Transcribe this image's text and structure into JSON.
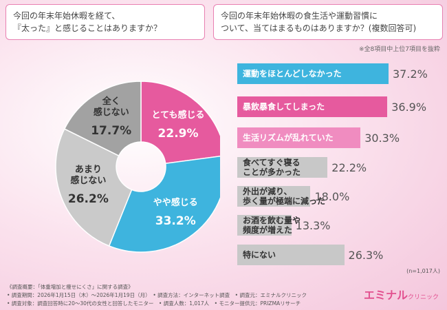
{
  "chart_data": [
    {
      "type": "donut",
      "title": "今回の年末年始休暇を経て、\n『太った』と感じることはありますか？",
      "categories": [
        "とても感じる",
        "やや感じる",
        "あまり\n感じない",
        "全く\n感じない"
      ],
      "values": [
        22.9,
        33.2,
        26.2,
        17.7
      ],
      "value_labels": [
        "22.9%",
        "33.2%",
        "26.2%",
        "17.7%"
      ],
      "colors": [
        "#e65a9e",
        "#3eb4de",
        "#cacaca",
        "#a2a2a2"
      ],
      "label_colors": [
        "#ffffff",
        "#ffffff",
        "#333333",
        "#333333"
      ]
    },
    {
      "type": "hbar",
      "title": "今回の年末年始休暇の食生活や運動習慣に\nついて、当てはまるものはありますか？(複数回答可)",
      "note": "※全8項目中上位7項目を抜粋",
      "categories": [
        "運動をほとんどしなかった",
        "暴飲暴食してしまった",
        "生活リズムが乱れていた",
        "食べてすぐ寝る\nことが多かった",
        "外出が減り、\n歩く量が極端に減った",
        "お酒を飲む量や\n頻度が増えた",
        "特にない"
      ],
      "values": [
        37.2,
        36.9,
        30.3,
        22.2,
        18.0,
        13.3,
        26.3
      ],
      "value_labels": [
        "37.2%",
        "36.9%",
        "30.3%",
        "22.2%",
        "18.0%",
        "13.3%",
        "26.3%"
      ],
      "colors": [
        "#3eb4de",
        "#e65a9e",
        "#f08cc0",
        "#c8c8c8",
        "#c8c8c8",
        "#c8c8c8",
        "#c8c8c8"
      ],
      "label_colors": [
        "#ffffff",
        "#ffffff",
        "#ffffff",
        "#333333",
        "#333333",
        "#333333",
        "#333333"
      ],
      "sample_size": "(n=1,017人)"
    }
  ],
  "footer": [
    "《調査概要：「体重増加と痩せにくさ」に関する調査》",
    "• 調査期間：2026年1月15日（木）〜2026年1月19日（月）　• 調査方法：インターネット調査　• 調査元：エミナルクリニック",
    "• 調査対象：調査回答時に20〜30代の女性と回答したモニター　• 調査人数：1,017人　• モニター提供元：PRIZMAリサーチ"
  ],
  "brand": {
    "name": "エミナル",
    "sub": "クリニック"
  }
}
